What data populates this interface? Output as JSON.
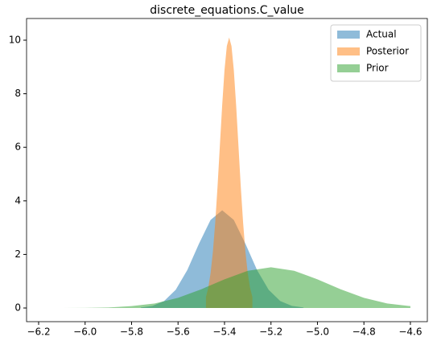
{
  "chart_data": {
    "type": "area",
    "title": "discrete_equations.C_value",
    "xlim": [
      -6.252,
      -4.527
    ],
    "ylim": [
      -0.51,
      10.81
    ],
    "xticks": [
      {
        "value": -6.2,
        "label": "−6.2"
      },
      {
        "value": -6.0,
        "label": "−6.0"
      },
      {
        "value": -5.8,
        "label": "−5.8"
      },
      {
        "value": -5.6,
        "label": "−5.6"
      },
      {
        "value": -5.4,
        "label": "−5.4"
      },
      {
        "value": -5.2,
        "label": "−5.2"
      },
      {
        "value": -5.0,
        "label": "−5.0"
      },
      {
        "value": -4.8,
        "label": "−4.8"
      },
      {
        "value": -4.6,
        "label": "−4.6"
      }
    ],
    "yticks": [
      0,
      2,
      4,
      6,
      8,
      10
    ],
    "legend": "upper right",
    "alpha": 0.5,
    "series": [
      {
        "name": "Actual",
        "color": "#1f77b4",
        "x": [
          -5.76,
          -5.71,
          -5.66,
          -5.61,
          -5.56,
          -5.51,
          -5.46,
          -5.41,
          -5.36,
          -5.31,
          -5.26,
          -5.21,
          -5.16,
          -5.11,
          -5.06
        ],
        "values": [
          0.02,
          0.08,
          0.26,
          0.68,
          1.42,
          2.4,
          3.29,
          3.65,
          3.29,
          2.4,
          1.42,
          0.68,
          0.26,
          0.08,
          0.02
        ]
      },
      {
        "name": "Posterior",
        "color": "#ff7f0e",
        "x": [
          -5.48,
          -5.47,
          -5.46,
          -5.45,
          -5.44,
          -5.43,
          -5.42,
          -5.41,
          -5.4,
          -5.39,
          -5.38,
          -5.37,
          -5.36,
          -5.35,
          -5.34,
          -5.33,
          -5.32,
          -5.31,
          -5.3,
          -5.29,
          -5.28
        ],
        "values": [
          0.41,
          0.75,
          1.3,
          2.1,
          3.19,
          4.53,
          6.06,
          7.57,
          8.89,
          9.78,
          10.1,
          9.78,
          8.89,
          7.57,
          6.06,
          4.53,
          3.19,
          2.1,
          1.3,
          0.75,
          0.41
        ]
      },
      {
        "name": "Prior",
        "color": "#2ca02c",
        "x": [
          -6.2,
          -6.1,
          -6.0,
          -5.9,
          -5.8,
          -5.7,
          -5.6,
          -5.5,
          -5.4,
          -5.3,
          -5.2,
          -5.1,
          -5.0,
          -4.9,
          -4.8,
          -4.7,
          -4.6
        ],
        "values": [
          0.0,
          0.0,
          0.006,
          0.02,
          0.07,
          0.17,
          0.38,
          0.7,
          1.07,
          1.39,
          1.52,
          1.39,
          1.07,
          0.7,
          0.38,
          0.17,
          0.07
        ]
      }
    ]
  }
}
